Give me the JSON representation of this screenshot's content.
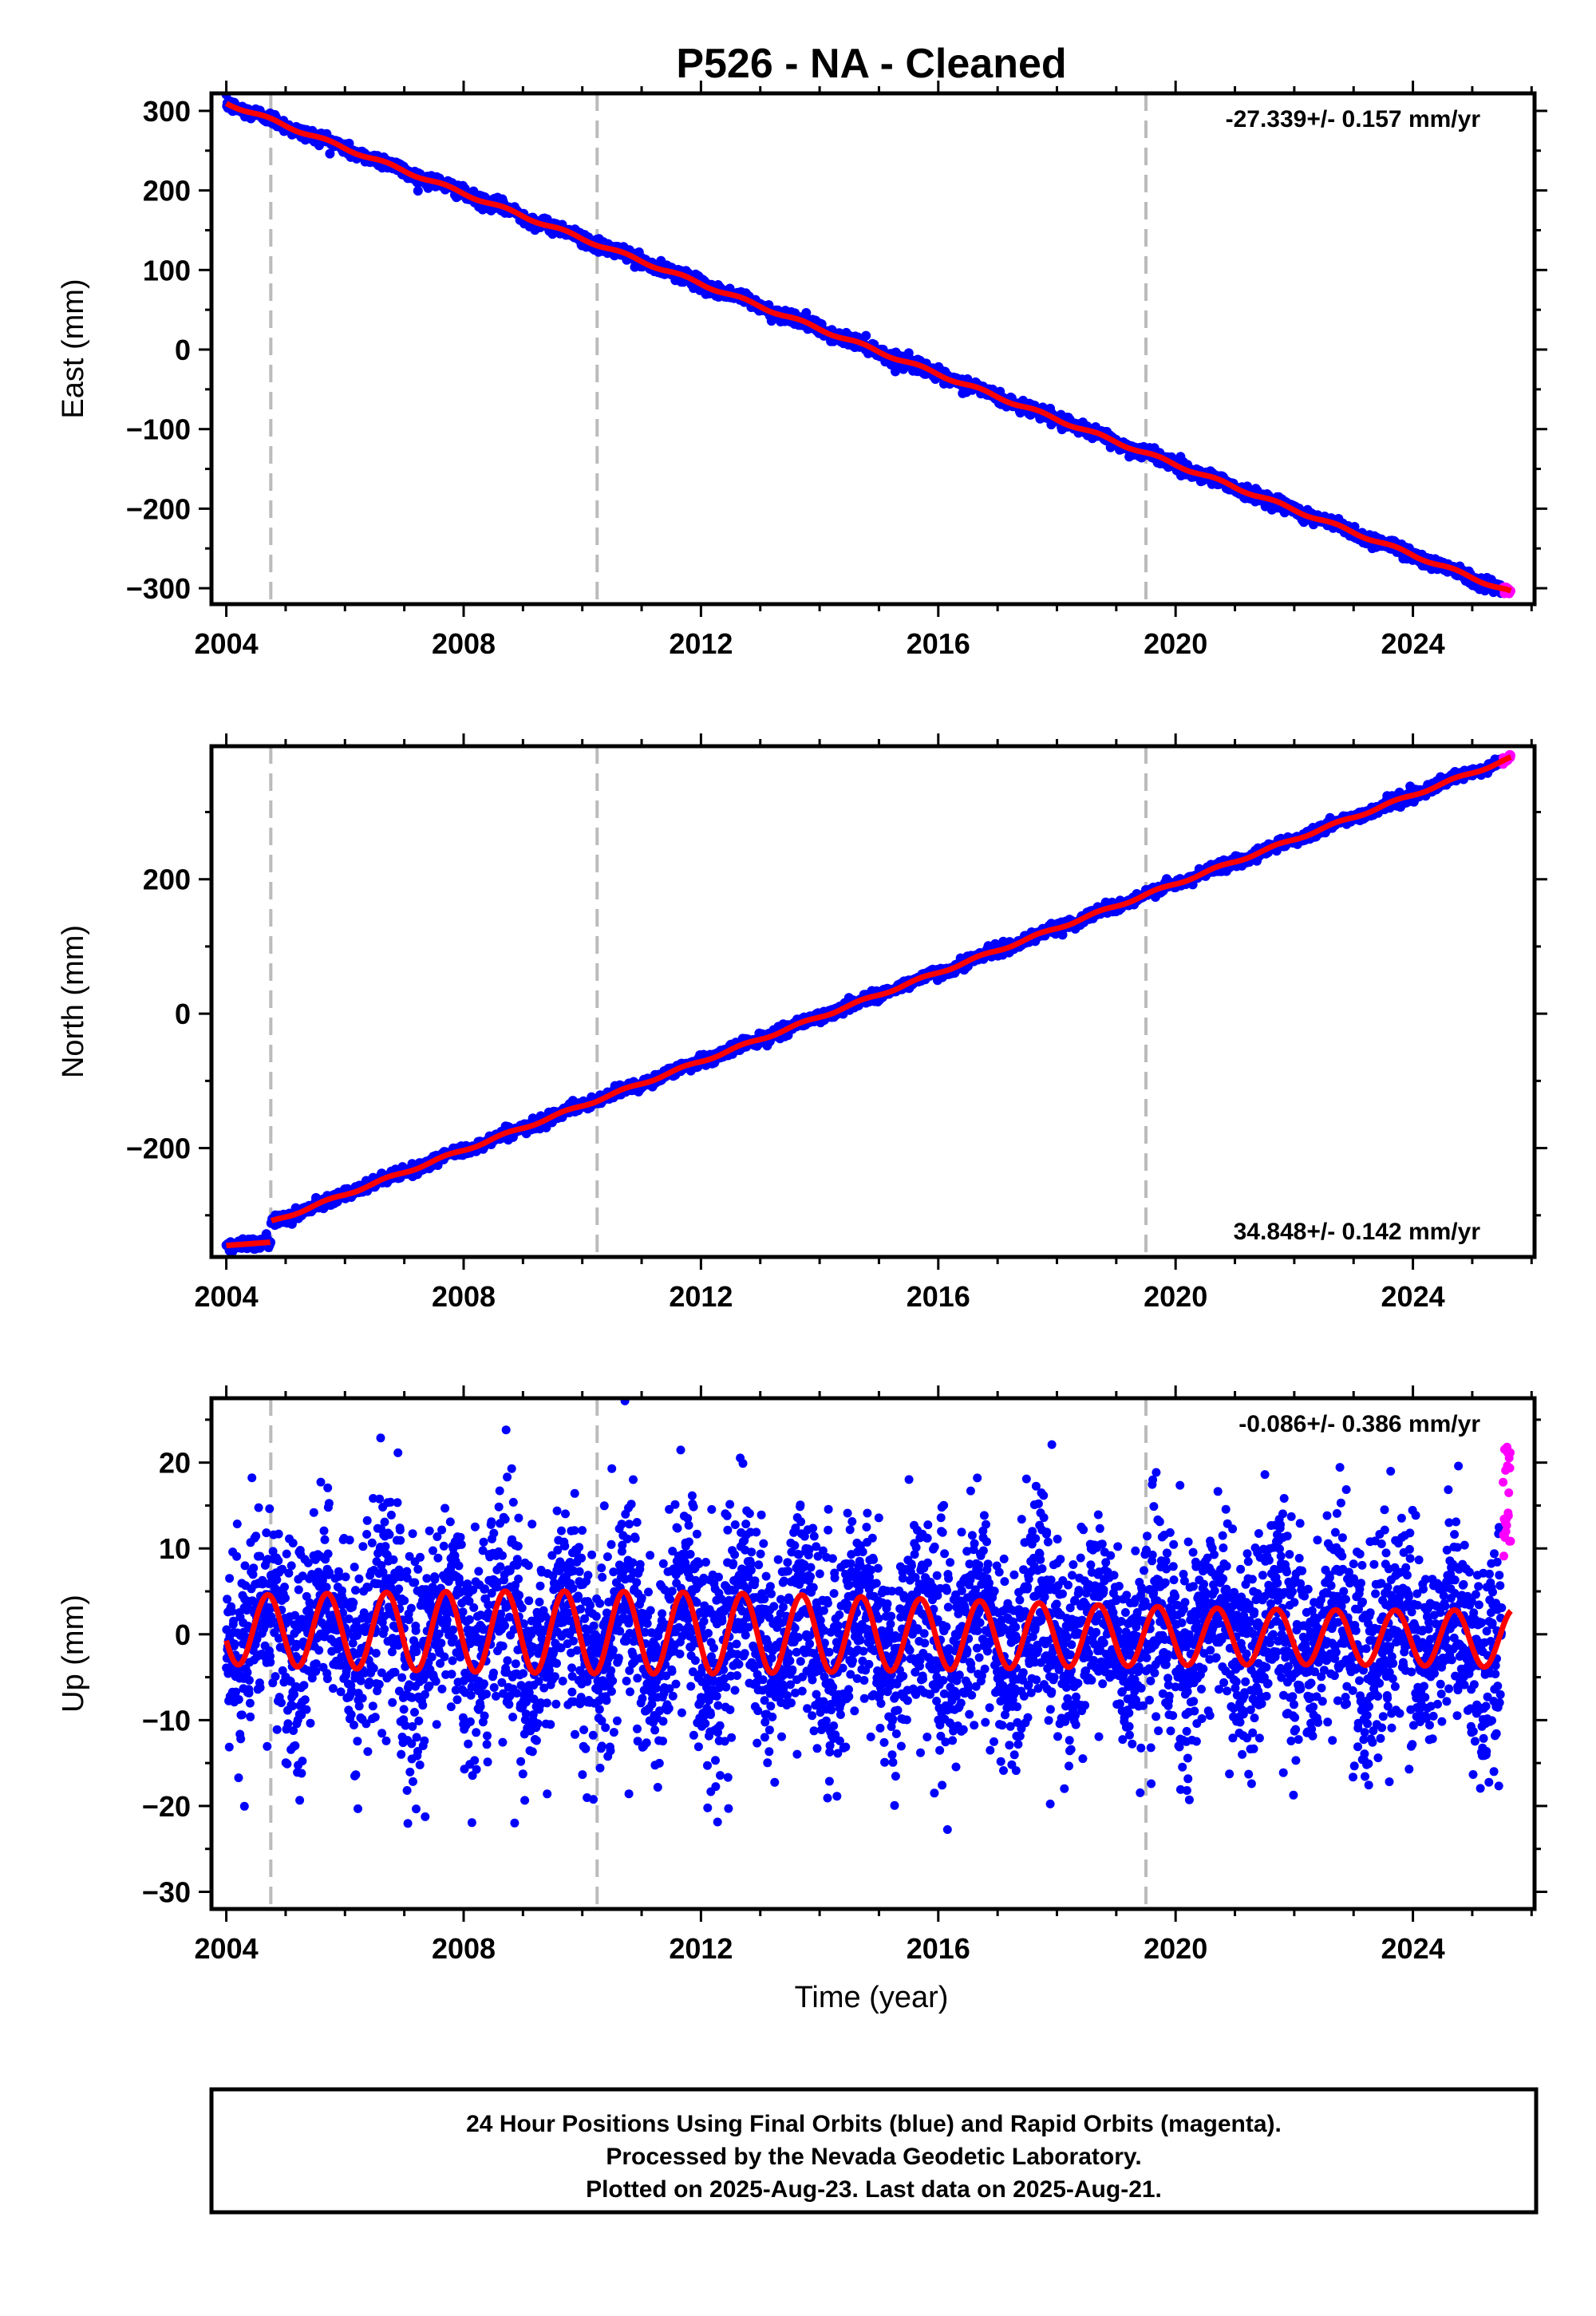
{
  "title": "P526  - NA - Cleaned",
  "xlabel": "Time (year)",
  "footer": [
    "24 Hour Positions Using Final Orbits (blue) and Rapid Orbits (magenta).",
    "Processed by the Nevada Geodetic Laboratory.",
    "Plotted on 2025-Aug-23. Last data on 2025-Aug-21."
  ],
  "colors": {
    "final_orbits": "#0000ff",
    "rapid_orbits": "#ff00ff",
    "model": "#ff0000",
    "event_lines": "#bbbbbb"
  },
  "chart_data": [
    {
      "type": "scatter",
      "name": "east",
      "ylabel": "East (mm)",
      "rate_text": "-27.339+/- 0.157 mm/yr",
      "rate_position": "top-right",
      "xlim": [
        2003.75,
        2026.05
      ],
      "ylim": [
        -320,
        322
      ],
      "yticks": [
        300,
        200,
        100,
        0,
        -100,
        -200,
        -300
      ],
      "xticks": [
        2004,
        2008,
        2012,
        2016,
        2020,
        2024
      ],
      "event_lines": [
        2004.75,
        2010.25,
        2019.5
      ],
      "trend": {
        "start_year": 2004.0,
        "start_value": 310,
        "end_year": 2025.65,
        "end_value": -305
      },
      "seasonal_amplitude": 2,
      "noise": 4,
      "grid": false
    },
    {
      "type": "scatter",
      "name": "north",
      "ylabel": "North (mm)",
      "rate_text": "34.848+/- 0.142 mm/yr",
      "rate_position": "bottom-right",
      "xlim": [
        2003.75,
        2026.05
      ],
      "ylim": [
        -362,
        398
      ],
      "yticks": [
        200,
        0,
        -200
      ],
      "xticks": [
        2004,
        2008,
        2012,
        2016,
        2020,
        2024
      ],
      "event_lines": [
        2004.75,
        2010.25,
        2019.5
      ],
      "trend": {
        "start_year": 2004.0,
        "start_value": -335,
        "end_year": 2025.65,
        "end_value": 380
      },
      "early_segment": {
        "start_year": 2004.0,
        "end_year": 2004.75,
        "start_value": -345,
        "end_value": -340
      },
      "seasonal_amplitude": 2,
      "noise": 4,
      "grid": false
    },
    {
      "type": "scatter",
      "name": "up",
      "ylabel": "Up (mm)",
      "rate_text": "-0.086+/- 0.386 mm/yr",
      "rate_position": "top-right",
      "xlim": [
        2003.75,
        2026.05
      ],
      "ylim": [
        -32,
        27.5
      ],
      "yticks": [
        20,
        10,
        0,
        -10,
        -20,
        -30
      ],
      "xticks": [
        2004,
        2008,
        2012,
        2016,
        2020,
        2024
      ],
      "event_lines": [
        2004.75,
        2010.25,
        2019.5
      ],
      "trend": {
        "start_year": 2004.0,
        "start_value": 0.5,
        "end_year": 2025.65,
        "end_value": -0.5
      },
      "seasonal_amplitude": 4,
      "noise": 4.5,
      "grid": false
    }
  ]
}
